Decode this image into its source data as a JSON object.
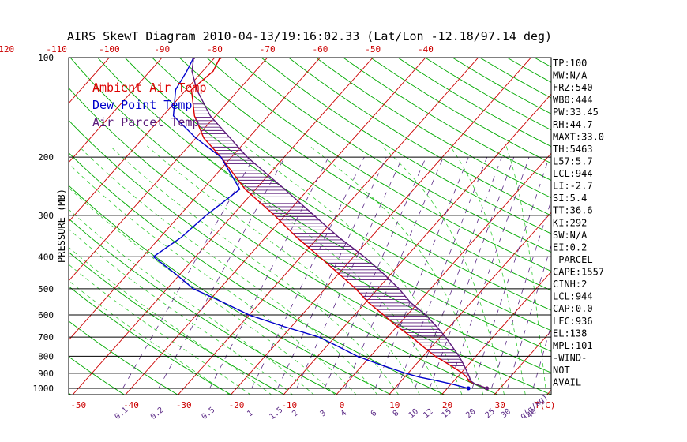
{
  "title": "AIRS SkewT Diagram 2010-04-13/19:16:02.33 (Lat/Lon -12.18/97.14 deg)",
  "colors": {
    "ambient": "#dd0000",
    "dewpoint": "#0000cc",
    "parcel": "#5b1a7a",
    "isotherm": "#cc0000",
    "dry_adiabat": "#00aa00",
    "moist_adiabat": "#33cc33",
    "mixing_ratio": "#5b2a86",
    "isobar": "#000000"
  },
  "legend": [
    {
      "label": "Ambient Air Temp",
      "color": "#dd0000"
    },
    {
      "label": "Dew Point Temp",
      "color": "#0000cc"
    },
    {
      "label": "Air Parcel Temp",
      "color": "#5b1a7a"
    }
  ],
  "indices": [
    "TP:100",
    "MW:N/A",
    "FRZ:540",
    "WB0:444",
    "PW:33.45",
    "RH:44.7",
    "MAXT:33.0",
    "TH:5463",
    "L57:5.7",
    "LCL:944",
    "LI:-2.7",
    "SI:5.4",
    "TT:36.6",
    "KI:292",
    "SW:N/A",
    "EI:0.2",
    "-PARCEL-",
    "CAPE:1557",
    "CINH:2",
    "LCL:944",
    "CAP:0.0",
    "LFC:936",
    "EL:138",
    "MPL:101",
    "-WIND-",
    "NOT",
    "AVAIL"
  ],
  "chart_data": {
    "type": "line",
    "title": "AIRS SkewT Diagram 2010-04-13/19:16:02.33 (Lat/Lon -12.18/97.14 deg)",
    "ylabel": "PRESSURE (MB)",
    "xlabel": "T(C)",
    "mixing_ratio_unit": "q(g/kg)",
    "y_scale": "log",
    "ylim": [
      1000,
      100
    ],
    "y_ticks": [
      100,
      200,
      300,
      400,
      500,
      600,
      700,
      800,
      900,
      1000
    ],
    "top_temperature_ticks": [
      -120,
      -110,
      -100,
      -90,
      -80,
      -70,
      -60,
      -50,
      -40
    ],
    "bottom_temperature_ticks": [
      -50,
      -40,
      -30,
      -20,
      -10,
      0,
      10,
      20,
      30
    ],
    "mixing_ratio_ticks": [
      "0.1",
      "0.2",
      "0.5",
      "1",
      "1.5",
      "2",
      "3",
      "4",
      "6",
      "8",
      "10",
      "12",
      "15",
      "20",
      "25",
      "30",
      "40"
    ],
    "series": [
      {
        "name": "Ambient Air Temp",
        "pressure": [
          1000,
          970,
          950,
          925,
          900,
          850,
          800,
          750,
          700,
          650,
          600,
          550,
          500,
          450,
          400,
          350,
          300,
          250,
          200,
          175,
          150,
          125,
          110,
          100
        ],
        "temperature": [
          27.5,
          24.5,
          22.8,
          21.8,
          20.3,
          16.5,
          12.3,
          8.5,
          4.6,
          0.0,
          -4.5,
          -9.5,
          -14.2,
          -20.0,
          -26.5,
          -34.0,
          -42.0,
          -52.0,
          -62.0,
          -68.5,
          -74.0,
          -79.0,
          -78.0,
          -79.0
        ]
      },
      {
        "name": "Dew Point Temp",
        "pressure": [
          1000,
          970,
          950,
          925,
          900,
          850,
          800,
          750,
          700,
          650,
          600,
          550,
          500,
          450,
          400,
          350,
          300,
          250,
          200,
          175,
          150,
          125,
          110,
          100
        ],
        "temperature": [
          24.0,
          20.0,
          17.0,
          12.8,
          9.5,
          3.5,
          -2.5,
          -7.5,
          -13.0,
          -21.5,
          -30.0,
          -37.0,
          -45.0,
          -51.0,
          -58.0,
          -56.0,
          -55.0,
          -53.0,
          -62.0,
          -70.0,
          -78.0,
          -82.0,
          -83.0,
          -84.0
        ]
      },
      {
        "name": "Air Parcel Temp",
        "pressure": [
          1000,
          970,
          950,
          925,
          900,
          850,
          800,
          750,
          700,
          650,
          600,
          550,
          500,
          450,
          400,
          350,
          300,
          250,
          200,
          175,
          150,
          125,
          110,
          100
        ],
        "temperature": [
          27.5,
          24.5,
          23.2,
          22.3,
          21.3,
          19.2,
          16.8,
          14.0,
          11.0,
          7.5,
          3.5,
          -1.5,
          -6.0,
          -11.5,
          -18.0,
          -26.0,
          -34.5,
          -44.5,
          -57.0,
          -63.5,
          -71.0,
          -78.0,
          -82.0,
          -84.0
        ]
      }
    ]
  }
}
